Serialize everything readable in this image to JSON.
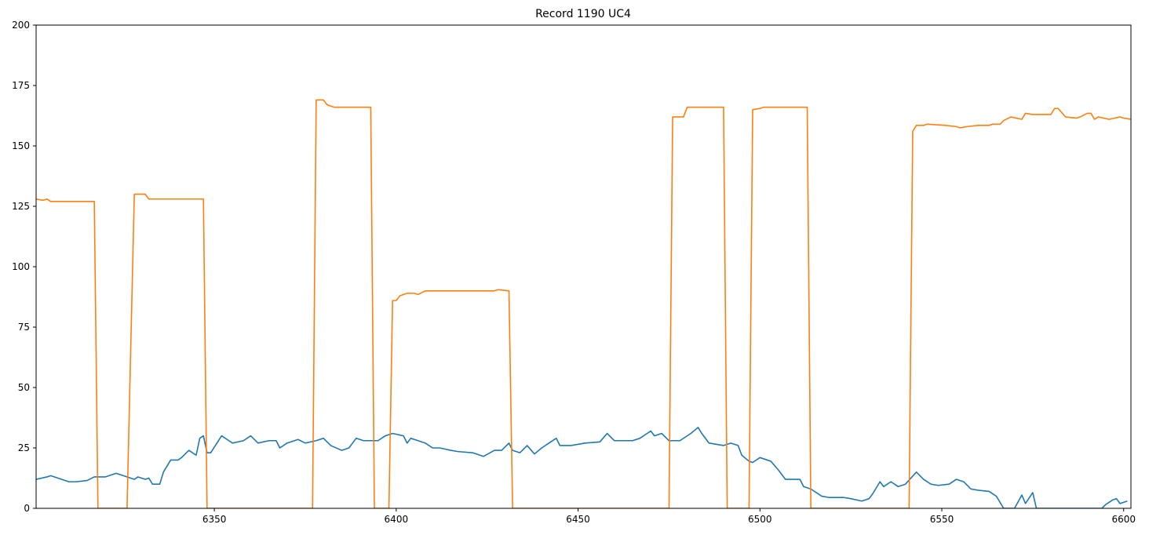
{
  "chart_data": {
    "type": "line",
    "title": "Record 1190 UC4",
    "xlim": [
      6301,
      6602
    ],
    "xticks": [
      6350,
      6400,
      6450,
      6500,
      6550,
      6600
    ],
    "ylim": [
      0,
      200
    ],
    "yticks": [
      0,
      25,
      50,
      75,
      100,
      125,
      150,
      175,
      200
    ],
    "series": [
      {
        "color": "#1f77b4",
        "x": [
          6301,
          6304,
          6305,
          6308,
          6310,
          6312,
          6315,
          6317,
          6320,
          6323,
          6325,
          6328,
          6329,
          6331,
          6332,
          6333,
          6335,
          6336,
          6338,
          6340,
          6341,
          6343,
          6345,
          6346,
          6347,
          6348,
          6349,
          6352,
          6354,
          6355,
          6358,
          6360,
          6362,
          6365,
          6367,
          6368,
          6370,
          6373,
          6375,
          6378,
          6380,
          6382,
          6385,
          6387,
          6389,
          6391,
          6393,
          6395,
          6397,
          6399,
          6402,
          6403,
          6404,
          6406,
          6408,
          6410,
          6412,
          6415,
          6417,
          6421,
          6423,
          6424,
          6427,
          6429,
          6431,
          6432,
          6434,
          6436,
          6438,
          6440,
          6442,
          6444,
          6445,
          6448,
          6452,
          6456,
          6458,
          6460,
          6465,
          6467,
          6469,
          6470,
          6471,
          6473,
          6475,
          6478,
          6481,
          6483,
          6484,
          6486,
          6490,
          6492,
          6494,
          6495,
          6497,
          6498,
          6500,
          6503,
          6505,
          6507,
          6509,
          6511,
          6512,
          6514,
          6517,
          6519,
          6521,
          6523,
          6525,
          6528,
          6530,
          6531,
          6533,
          6534,
          6536,
          6538,
          6540,
          6543,
          6545,
          6547,
          6549,
          6552,
          6554,
          6556,
          6558,
          6560,
          6563,
          6565,
          6567,
          6570,
          6572,
          6573,
          6575,
          6576,
          6594,
          6595,
          6597,
          6598,
          6599,
          6601
        ],
        "values": [
          12,
          13,
          13.5,
          12,
          11,
          11,
          11.5,
          13,
          13,
          14.5,
          13.5,
          12,
          13,
          12,
          12.5,
          10,
          10,
          15,
          20,
          20,
          21,
          24,
          22,
          29,
          30,
          23,
          23,
          30,
          28,
          27,
          28,
          30,
          27,
          28,
          28,
          25,
          27,
          28.5,
          27,
          28,
          29,
          26,
          24,
          25,
          29,
          28,
          28,
          28,
          30,
          31,
          30,
          27,
          29,
          28,
          27,
          25,
          25,
          24,
          23.5,
          23,
          22,
          21.5,
          24,
          24,
          27,
          24,
          23,
          26,
          22.5,
          25,
          27,
          29,
          26,
          26,
          27,
          27.5,
          31,
          28,
          28,
          29,
          31,
          32,
          30,
          31,
          28,
          28,
          31,
          33.5,
          31,
          27,
          26,
          27,
          26,
          22,
          19.5,
          19,
          21,
          19.5,
          16,
          12,
          12,
          12,
          9,
          8,
          5,
          4.5,
          4.5,
          4.5,
          4,
          3,
          4,
          6,
          11,
          9,
          11,
          9,
          10,
          15,
          12,
          10,
          9.5,
          10,
          12,
          11,
          8,
          7.5,
          7,
          5,
          0,
          0,
          5.5,
          2,
          6.5,
          0,
          0,
          1.5,
          3.5,
          4,
          2,
          3
        ]
      },
      {
        "color": "#ff7f0e",
        "x": [
          6301,
          6303,
          6304,
          6305,
          6317,
          6318,
          6326,
          6328,
          6331,
          6332,
          6347,
          6348,
          6377,
          6378,
          6380,
          6381,
          6383,
          6393,
          6394,
          6398,
          6399,
          6400,
          6401,
          6403,
          6405,
          6406,
          6408,
          6410,
          6427,
          6428,
          6431,
          6432,
          6475,
          6476,
          6479,
          6480,
          6486,
          6490,
          6491,
          6497,
          6498,
          6500,
          6501,
          6513,
          6514,
          6541,
          6542,
          6543,
          6545,
          6546,
          6551,
          6554,
          6555,
          6557,
          6560,
          6563,
          6564,
          6566,
          6567,
          6569,
          6572,
          6573,
          6575,
          6577,
          6580,
          6581,
          6582,
          6584,
          6587,
          6588,
          6590,
          6591,
          6592,
          6593,
          6596,
          6599,
          6600,
          6602
        ],
        "values": [
          128,
          127.5,
          128,
          127,
          127,
          0,
          0,
          130,
          130,
          128,
          128,
          0,
          0,
          169,
          169,
          167,
          166,
          166,
          0,
          0,
          86,
          86,
          88,
          89,
          89,
          88.5,
          90,
          90,
          90,
          90.5,
          90,
          0,
          0,
          162,
          162,
          166,
          166,
          166,
          0,
          0,
          165,
          165.5,
          166,
          166,
          0,
          0,
          156,
          158.5,
          158.5,
          159,
          158.5,
          158,
          157.5,
          158,
          158.5,
          158.5,
          159,
          159,
          160.5,
          162,
          161,
          163.5,
          163,
          163,
          163,
          165.5,
          165.5,
          162,
          161.5,
          162,
          163.5,
          163.5,
          161,
          162,
          161,
          162,
          161.5,
          161
        ]
      }
    ]
  }
}
